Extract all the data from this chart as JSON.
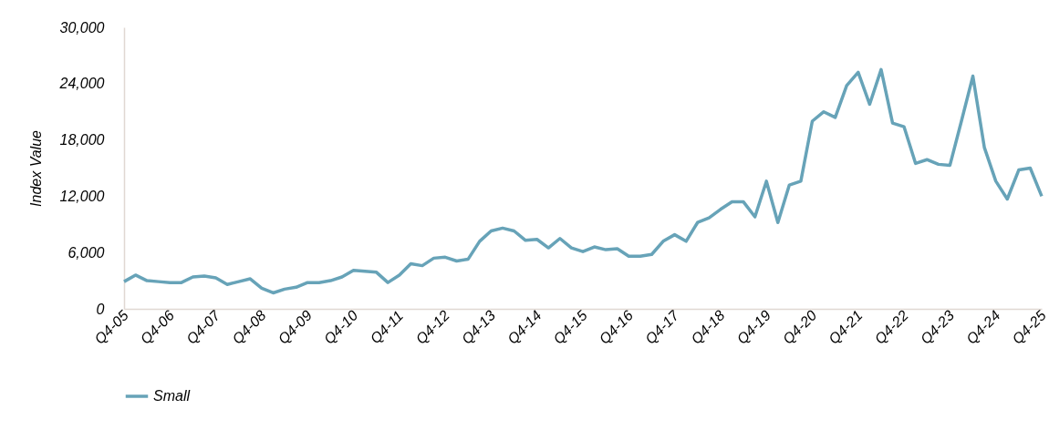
{
  "chart_data": {
    "type": "line",
    "ylabel": "Index Value",
    "categories": [
      "Q4-05",
      null,
      null,
      null,
      "Q4-06",
      null,
      null,
      null,
      "Q4-07",
      null,
      null,
      null,
      "Q4-08",
      null,
      null,
      null,
      "Q4-09",
      null,
      null,
      null,
      "Q4-10",
      null,
      null,
      null,
      "Q4-11",
      null,
      null,
      null,
      "Q4-12",
      null,
      null,
      null,
      "Q4-13",
      null,
      null,
      null,
      "Q4-14",
      null,
      null,
      null,
      "Q4-15",
      null,
      null,
      null,
      "Q4-16",
      null,
      null,
      null,
      "Q4-17",
      null,
      null,
      null,
      "Q4-18",
      null,
      null,
      null,
      "Q4-19",
      null,
      null,
      null,
      "Q4-20",
      null,
      null,
      null,
      "Q4-21",
      null,
      null,
      null,
      "Q4-22",
      null,
      null,
      null,
      "Q4-23",
      null,
      null,
      null,
      "Q4-24",
      null,
      null,
      null,
      "Q4-25"
    ],
    "series": [
      {
        "name": "Small",
        "color": "#67a3b8",
        "values": [
          2900,
          3600,
          3000,
          2900,
          2800,
          2800,
          3400,
          3500,
          3300,
          2600,
          2900,
          3200,
          2200,
          1700,
          2100,
          2300,
          2800,
          2800,
          3000,
          3400,
          4100,
          4000,
          3900,
          2800,
          3600,
          4800,
          4600,
          5400,
          5500,
          5100,
          5300,
          7200,
          8300,
          8600,
          8300,
          7300,
          7400,
          6500,
          7500,
          6500,
          6100,
          6600,
          6300,
          6400,
          5600,
          5600,
          5800,
          7200,
          7900,
          7200,
          9200,
          9700,
          10600,
          11400,
          11400,
          9800,
          13600,
          9200,
          13200,
          13600,
          20000,
          21000,
          20400,
          23800,
          25200,
          21800,
          25500,
          19800,
          19400,
          15500,
          15900,
          15400,
          15300,
          20000,
          24800,
          17200,
          13600,
          11700,
          14800,
          15000,
          12000
        ]
      }
    ],
    "ylim": [
      0,
      30000
    ],
    "yticks": [
      0,
      {
        "value": 6000,
        "label": "6,000"
      },
      {
        "value": 12000,
        "label": "12,000"
      },
      {
        "value": 18000,
        "label": "18,000"
      },
      {
        "value": 24000,
        "label": "24,000"
      },
      {
        "value": 30000,
        "label": "30,000"
      }
    ],
    "legend": "bottom",
    "marker": "none",
    "line_style": "solid"
  }
}
